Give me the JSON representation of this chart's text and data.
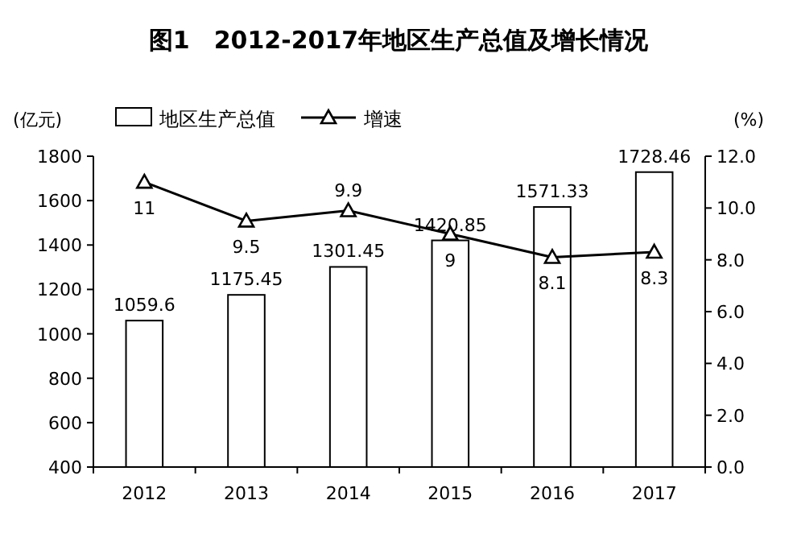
{
  "chart_data": {
    "type": "bar",
    "title": "图1　2012-2017年地区生产总值及增长情况",
    "ylabel": "(亿元)",
    "y2label": "(%)",
    "categories": [
      "2012",
      "2013",
      "2014",
      "2015",
      "2016",
      "2017"
    ],
    "series": [
      {
        "name": "地区生产总值",
        "color": "#ffffff",
        "values": [
          1059.6,
          1175.45,
          1301.45,
          1420.85,
          1571.33,
          1728.46
        ]
      },
      {
        "name": "增速",
        "type": "line",
        "axis": "y2",
        "color": "#000000",
        "marker": "triangle",
        "values": [
          11,
          9.5,
          9.9,
          9,
          8.1,
          8.3
        ]
      }
    ],
    "ylim": [
      400,
      1800
    ],
    "yticks": [
      400,
      600,
      800,
      1000,
      1200,
      1400,
      1600,
      1800
    ],
    "y2lim": [
      0,
      12
    ],
    "y2ticks": [
      {
        "value": 0,
        "label": "0.0"
      },
      {
        "value": 2,
        "label": "2.0"
      },
      {
        "value": 4,
        "label": "4.0"
      },
      {
        "value": 6,
        "label": "6.0"
      },
      {
        "value": 8,
        "label": "8.0"
      },
      {
        "value": 10,
        "label": "10.0"
      },
      {
        "value": 12,
        "label": "12.0"
      }
    ],
    "data_labels": true,
    "legend": "top left"
  }
}
